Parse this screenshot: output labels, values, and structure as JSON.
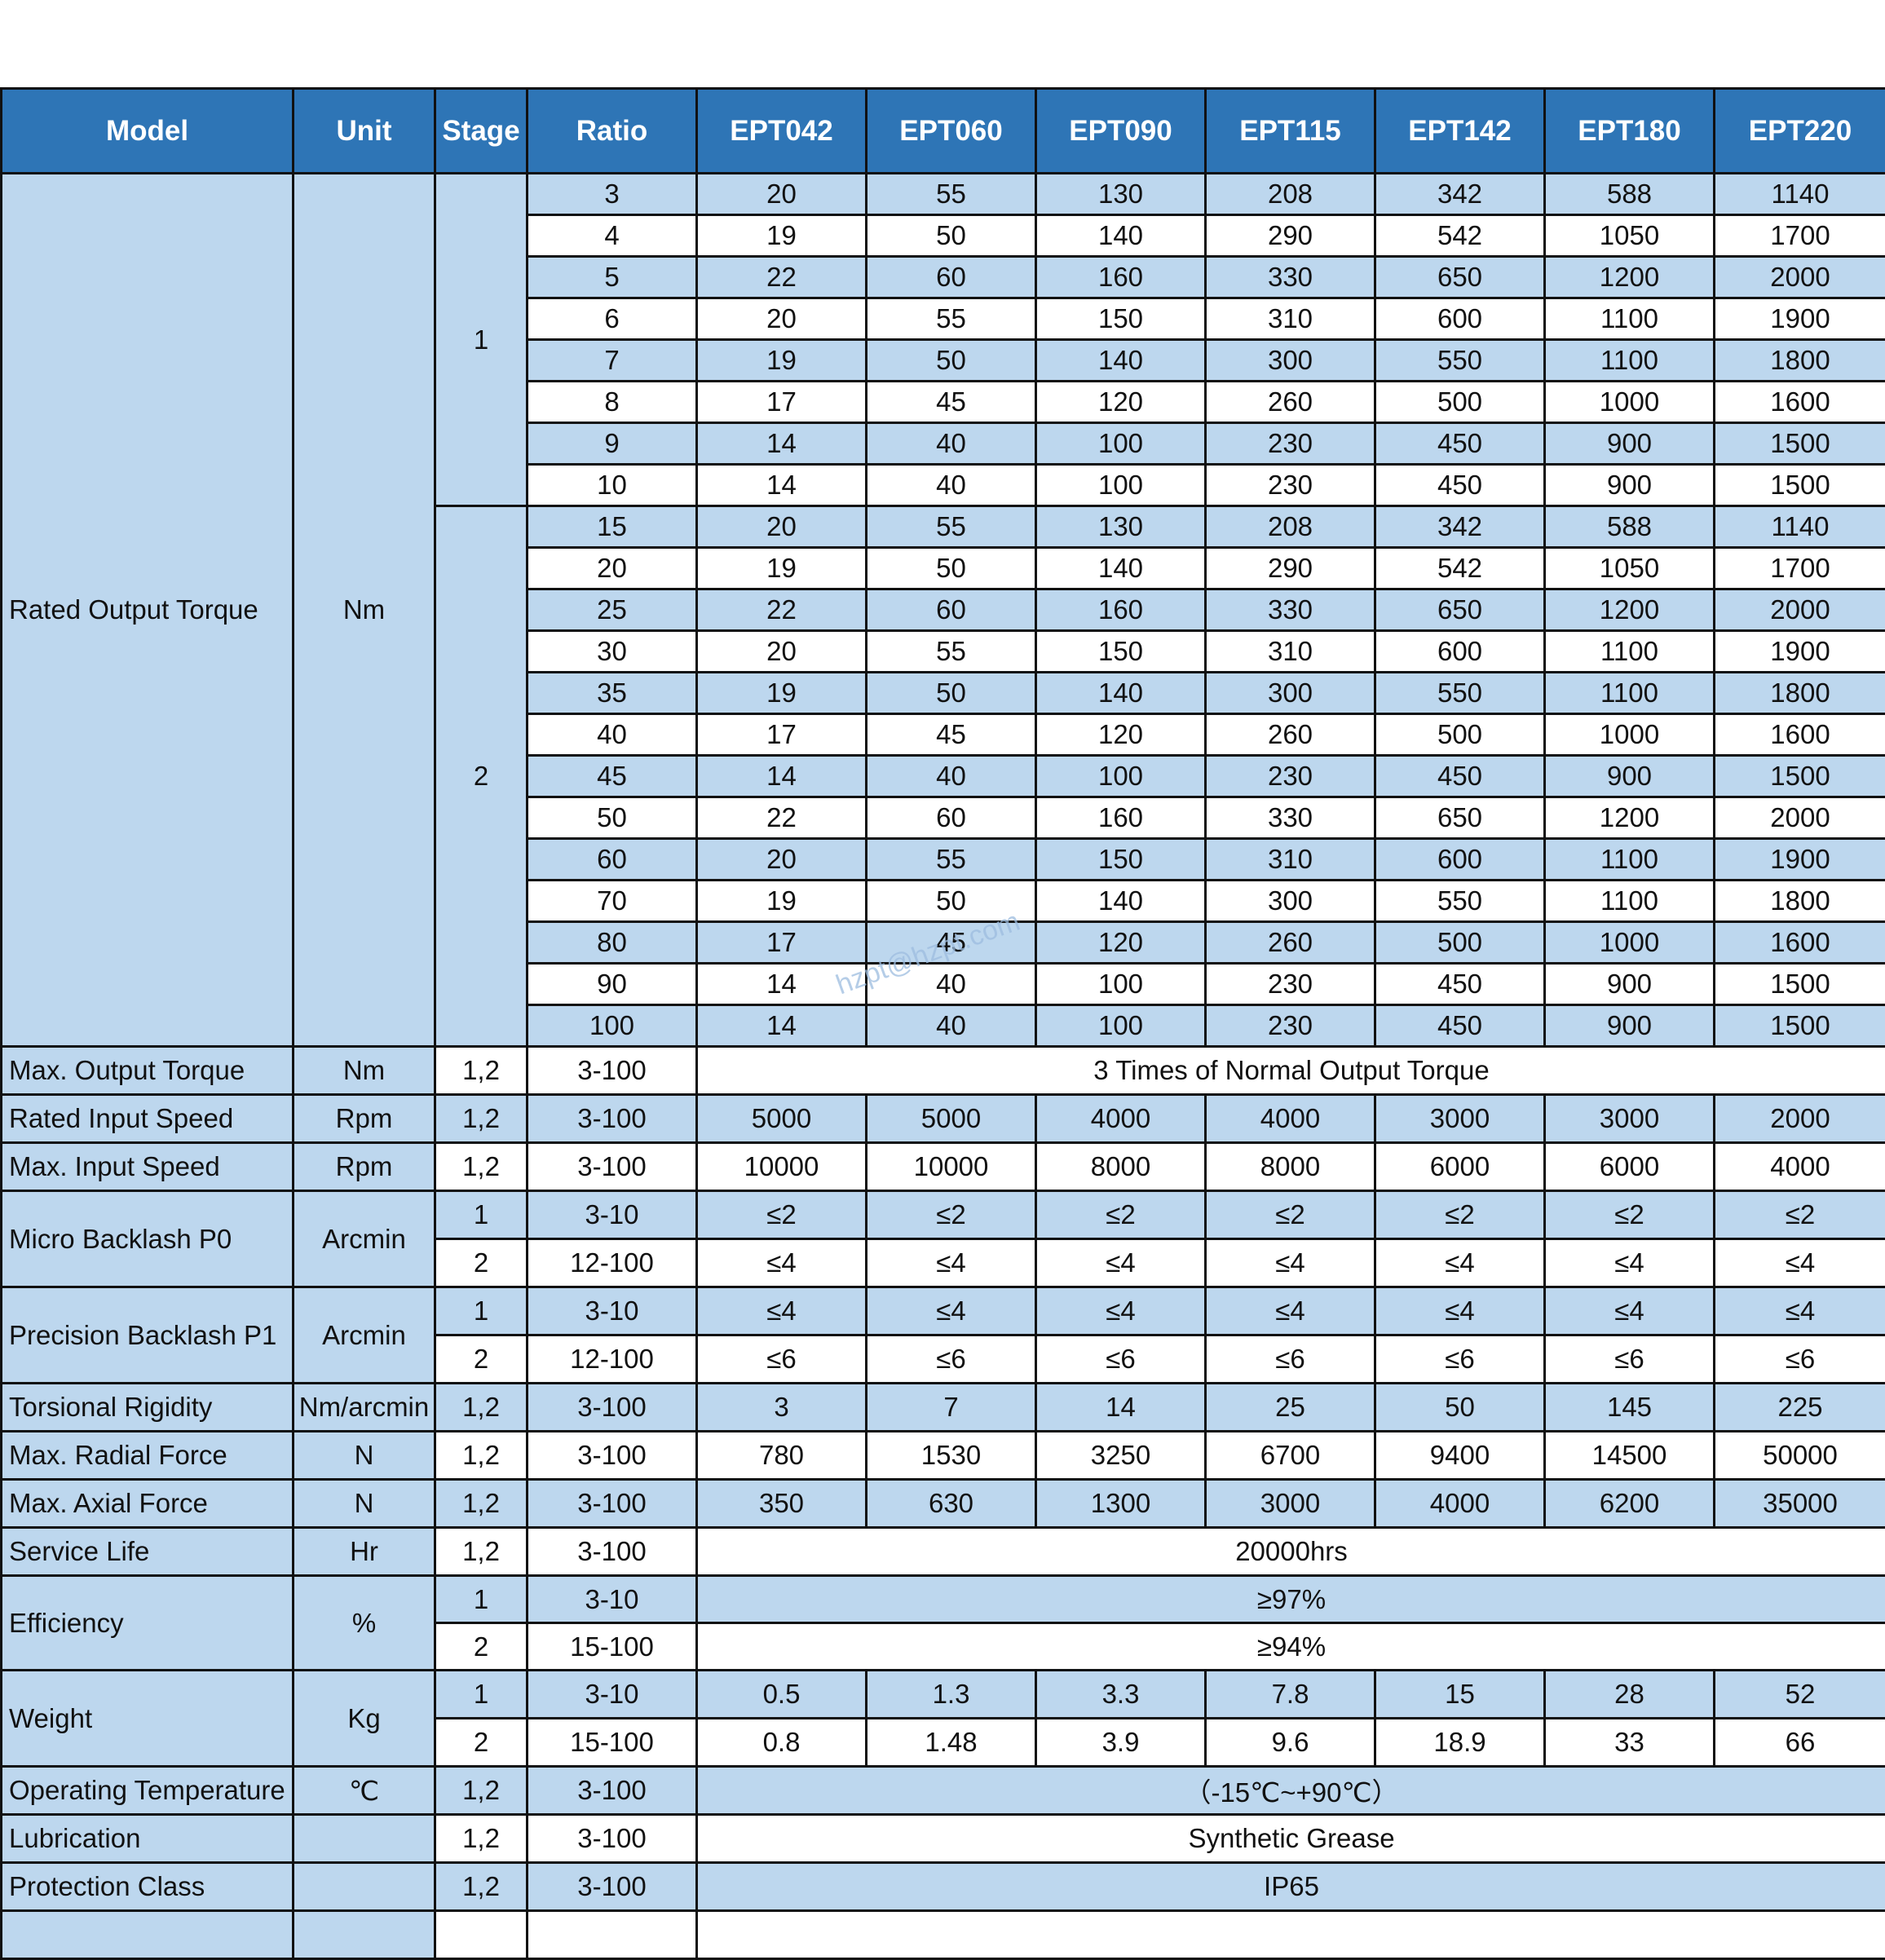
{
  "headers": [
    "Model",
    "Unit",
    "Stage",
    "Ratio",
    "EPT042",
    "EPT060",
    "EPT090",
    "EPT115",
    "EPT142",
    "EPT180",
    "EPT220"
  ],
  "rated_output_torque": {
    "label": "Rated Output Torque",
    "unit": "Nm",
    "stage1": "1",
    "stage2": "2",
    "rows": [
      [
        "3",
        "20",
        "55",
        "130",
        "208",
        "342",
        "588",
        "1140"
      ],
      [
        "4",
        "19",
        "50",
        "140",
        "290",
        "542",
        "1050",
        "1700"
      ],
      [
        "5",
        "22",
        "60",
        "160",
        "330",
        "650",
        "1200",
        "2000"
      ],
      [
        "6",
        "20",
        "55",
        "150",
        "310",
        "600",
        "1100",
        "1900"
      ],
      [
        "7",
        "19",
        "50",
        "140",
        "300",
        "550",
        "1100",
        "1800"
      ],
      [
        "8",
        "17",
        "45",
        "120",
        "260",
        "500",
        "1000",
        "1600"
      ],
      [
        "9",
        "14",
        "40",
        "100",
        "230",
        "450",
        "900",
        "1500"
      ],
      [
        "10",
        "14",
        "40",
        "100",
        "230",
        "450",
        "900",
        "1500"
      ],
      [
        "15",
        "20",
        "55",
        "130",
        "208",
        "342",
        "588",
        "1140"
      ],
      [
        "20",
        "19",
        "50",
        "140",
        "290",
        "542",
        "1050",
        "1700"
      ],
      [
        "25",
        "22",
        "60",
        "160",
        "330",
        "650",
        "1200",
        "2000"
      ],
      [
        "30",
        "20",
        "55",
        "150",
        "310",
        "600",
        "1100",
        "1900"
      ],
      [
        "35",
        "19",
        "50",
        "140",
        "300",
        "550",
        "1100",
        "1800"
      ],
      [
        "40",
        "17",
        "45",
        "120",
        "260",
        "500",
        "1000",
        "1600"
      ],
      [
        "45",
        "14",
        "40",
        "100",
        "230",
        "450",
        "900",
        "1500"
      ],
      [
        "50",
        "22",
        "60",
        "160",
        "330",
        "650",
        "1200",
        "2000"
      ],
      [
        "60",
        "20",
        "55",
        "150",
        "310",
        "600",
        "1100",
        "1900"
      ],
      [
        "70",
        "19",
        "50",
        "140",
        "300",
        "550",
        "1100",
        "1800"
      ],
      [
        "80",
        "17",
        "45",
        "120",
        "260",
        "500",
        "1000",
        "1600"
      ],
      [
        "90",
        "14",
        "40",
        "100",
        "230",
        "450",
        "900",
        "1500"
      ],
      [
        "100",
        "14",
        "40",
        "100",
        "230",
        "450",
        "900",
        "1500"
      ]
    ]
  },
  "max_output_torque": {
    "label": "Max. Output Torque",
    "unit": "Nm",
    "stage": "1,2",
    "ratio": "3-100",
    "value": "3 Times of Normal Output Torque"
  },
  "rated_input_speed": {
    "label": "Rated Input Speed",
    "unit": "Rpm",
    "stage": "1,2",
    "ratio": "3-100",
    "values": [
      "5000",
      "5000",
      "4000",
      "4000",
      "3000",
      "3000",
      "2000"
    ]
  },
  "max_input_speed": {
    "label": "Max. Input Speed",
    "unit": "Rpm",
    "stage": "1,2",
    "ratio": "3-100",
    "values": [
      "10000",
      "10000",
      "8000",
      "8000",
      "6000",
      "6000",
      "4000"
    ]
  },
  "micro_backlash": {
    "label": "Micro Backlash P0",
    "unit": "Arcmin",
    "rows": [
      {
        "stage": "1",
        "ratio": "3-10",
        "values": [
          "≤2",
          "≤2",
          "≤2",
          "≤2",
          "≤2",
          "≤2",
          "≤2"
        ]
      },
      {
        "stage": "2",
        "ratio": "12-100",
        "values": [
          "≤4",
          "≤4",
          "≤4",
          "≤4",
          "≤4",
          "≤4",
          "≤4"
        ]
      }
    ]
  },
  "precision_backlash": {
    "label": "Precision Backlash P1",
    "unit": "Arcmin",
    "rows": [
      {
        "stage": "1",
        "ratio": "3-10",
        "values": [
          "≤4",
          "≤4",
          "≤4",
          "≤4",
          "≤4",
          "≤4",
          "≤4"
        ]
      },
      {
        "stage": "2",
        "ratio": "12-100",
        "values": [
          "≤6",
          "≤6",
          "≤6",
          "≤6",
          "≤6",
          "≤6",
          "≤6"
        ]
      }
    ]
  },
  "torsional_rigidity": {
    "label": "Torsional Rigidity",
    "unit": "Nm/arcmin",
    "stage": "1,2",
    "ratio": "3-100",
    "values": [
      "3",
      "7",
      "14",
      "25",
      "50",
      "145",
      "225"
    ]
  },
  "max_radial_force": {
    "label": "Max. Radial Force",
    "unit": "N",
    "stage": "1,2",
    "ratio": "3-100",
    "values": [
      "780",
      "1530",
      "3250",
      "6700",
      "9400",
      "14500",
      "50000"
    ]
  },
  "max_axial_force": {
    "label": "Max. Axial Force",
    "unit": "N",
    "stage": "1,2",
    "ratio": "3-100",
    "values": [
      "350",
      "630",
      "1300",
      "3000",
      "4000",
      "6200",
      "35000"
    ]
  },
  "service_life": {
    "label": "Service Life",
    "unit": "Hr",
    "stage": "1,2",
    "ratio": "3-100",
    "value": "20000hrs"
  },
  "efficiency": {
    "label": "Efficiency",
    "unit": "%",
    "rows": [
      {
        "stage": "1",
        "ratio": "3-10",
        "value": "≥97%"
      },
      {
        "stage": "2",
        "ratio": "15-100",
        "value": "≥94%"
      }
    ]
  },
  "weight": {
    "label": "Weight",
    "unit": "Kg",
    "rows": [
      {
        "stage": "1",
        "ratio": "3-10",
        "values": [
          "0.5",
          "1.3",
          "3.3",
          "7.8",
          "15",
          "28",
          "52"
        ]
      },
      {
        "stage": "2",
        "ratio": "15-100",
        "values": [
          "0.8",
          "1.48",
          "3.9",
          "9.6",
          "18.9",
          "33",
          "66"
        ]
      }
    ]
  },
  "operating_temperature": {
    "label": "Operating Temperature",
    "unit": "℃",
    "stage": "1,2",
    "ratio": "3-100",
    "value": "（-15℃~+90℃）"
  },
  "lubrication": {
    "label": "Lubrication",
    "unit": "",
    "stage": "1,2",
    "ratio": "3-100",
    "value": "Synthetic Grease"
  },
  "protection_class": {
    "label": "Protection Class",
    "unit": "",
    "stage": "1,2",
    "ratio": "3-100",
    "value": "IP65"
  },
  "watermark": "hzpt@hzpt.com"
}
